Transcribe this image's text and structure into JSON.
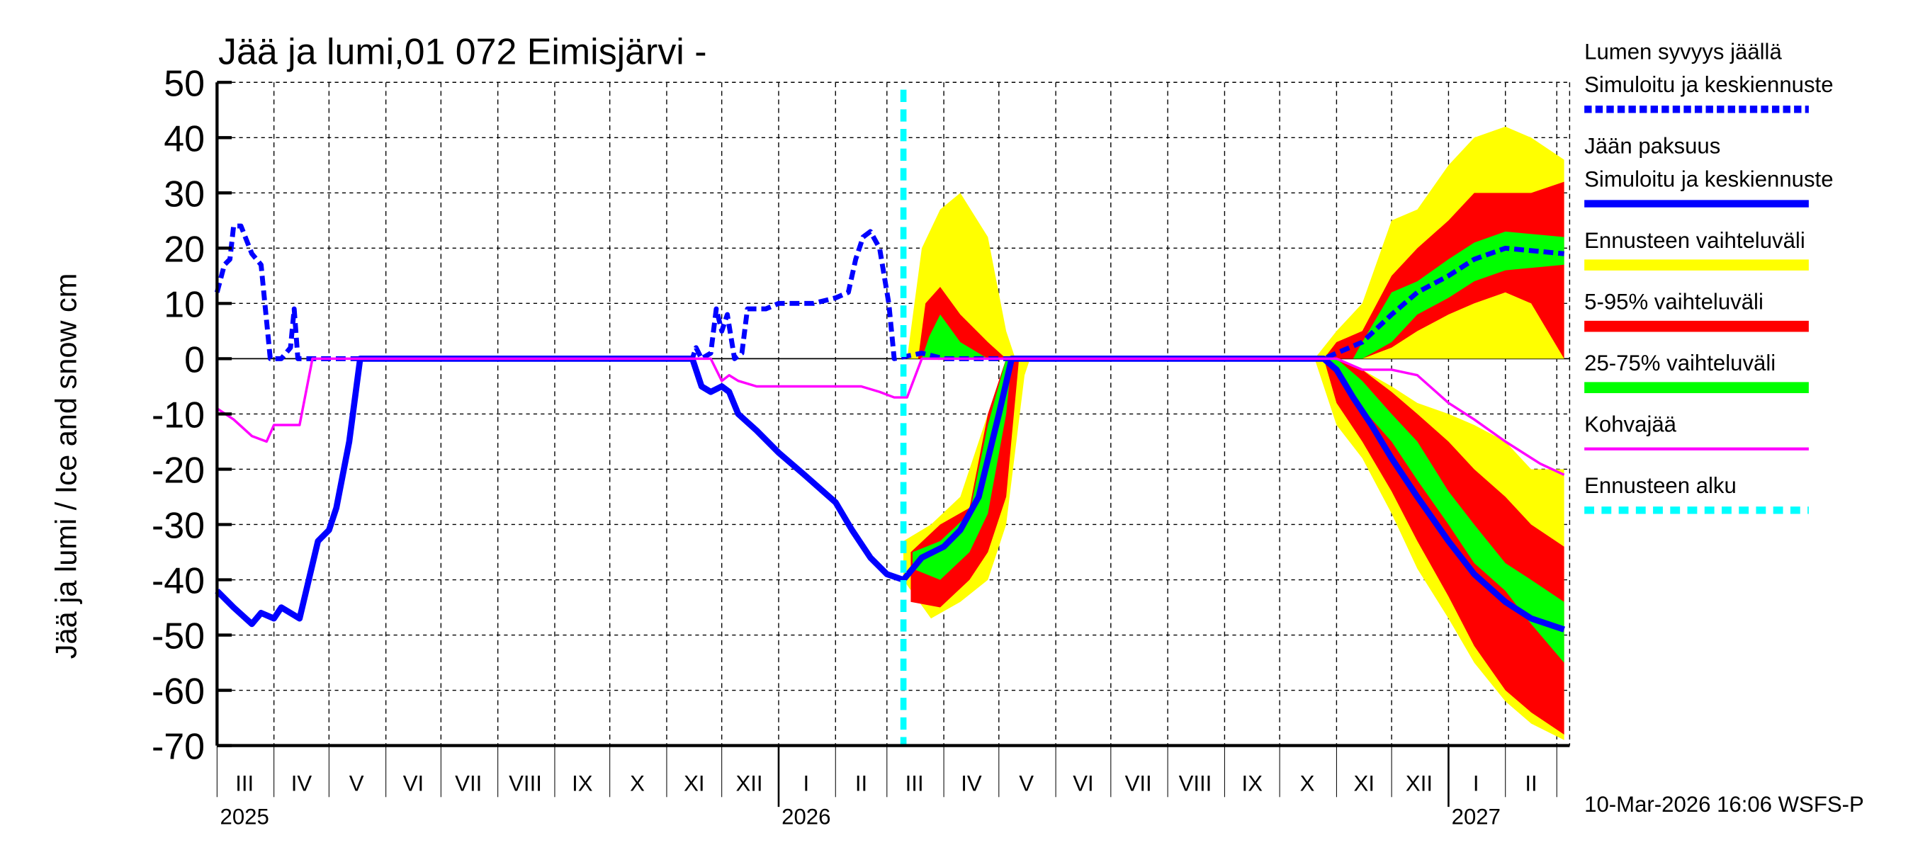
{
  "chart_data": {
    "type": "area",
    "title": "Jää ja lumi,01 072 Eimisjärvi -",
    "ylabel": "Jää ja lumi / Ice and snow    cm",
    "ylim": [
      -70,
      50
    ],
    "yticks": [
      50,
      40,
      30,
      20,
      10,
      0,
      -10,
      -20,
      -30,
      -40,
      -50,
      -60,
      -70
    ],
    "xlim": [
      "2025-03-01",
      "2027-03-08"
    ],
    "grid": true,
    "legend_position": "right",
    "month_labels": [
      {
        "label": "III",
        "date": "2025-03-16"
      },
      {
        "label": "IV",
        "date": "2025-04-16"
      },
      {
        "label": "V",
        "date": "2025-05-16"
      },
      {
        "label": "VI",
        "date": "2025-06-16"
      },
      {
        "label": "VII",
        "date": "2025-07-16"
      },
      {
        "label": "VIII",
        "date": "2025-08-16"
      },
      {
        "label": "IX",
        "date": "2025-09-16"
      },
      {
        "label": "X",
        "date": "2025-10-16"
      },
      {
        "label": "XI",
        "date": "2025-11-16"
      },
      {
        "label": "XII",
        "date": "2025-12-16"
      },
      {
        "label": "I",
        "date": "2026-01-16"
      },
      {
        "label": "II",
        "date": "2026-02-15"
      },
      {
        "label": "III",
        "date": "2026-03-16"
      },
      {
        "label": "IV",
        "date": "2026-04-16"
      },
      {
        "label": "V",
        "date": "2026-05-16"
      },
      {
        "label": "VI",
        "date": "2026-06-16"
      },
      {
        "label": "VII",
        "date": "2026-07-16"
      },
      {
        "label": "VIII",
        "date": "2026-08-16"
      },
      {
        "label": "IX",
        "date": "2026-09-16"
      },
      {
        "label": "X",
        "date": "2026-10-16"
      },
      {
        "label": "XI",
        "date": "2026-11-16"
      },
      {
        "label": "XII",
        "date": "2026-12-16"
      },
      {
        "label": "I",
        "date": "2027-01-16"
      },
      {
        "label": "II",
        "date": "2027-02-15"
      }
    ],
    "year_labels": [
      {
        "label": "2025",
        "date": "2025-03-16"
      },
      {
        "label": "2026",
        "date": "2026-01-16"
      },
      {
        "label": "2027",
        "date": "2027-01-16"
      }
    ],
    "forecast_start": "2026-03-10",
    "colors": {
      "snow": "#0000ff",
      "ice": "#0000ff",
      "range": "#ffff00",
      "p5_95": "#ff0000",
      "p25_75": "#00ff00",
      "kohva": "#ff00ff",
      "forecast_start": "#00ffff"
    },
    "legend": [
      {
        "label": "Lumen syvyys jäällä\nSimuloitu ja keskiennuste",
        "style": "dashed",
        "color": "#0000ff"
      },
      {
        "label": "Jään paksuus\nSimuloitu ja keskiennuste",
        "style": "solid",
        "color": "#0000ff"
      },
      {
        "label": "Ennusteen vaihteluväli",
        "style": "band",
        "color": "#ffff00"
      },
      {
        "label": "5-95% vaihteluväli",
        "style": "band",
        "color": "#ff0000"
      },
      {
        "label": "25-75% vaihteluväli",
        "style": "band",
        "color": "#00ff00"
      },
      {
        "label": "Kohvajää",
        "style": "thin",
        "color": "#ff00ff"
      },
      {
        "label": "Ennusteen alku",
        "style": "dotted",
        "color": "#00ffff"
      }
    ],
    "bands": {
      "range": [
        [
          [
            "2026-03-12",
            0,
            0
          ],
          [
            "2026-03-20",
            0,
            20
          ],
          [
            "2026-03-30",
            0,
            27
          ],
          [
            "2026-04-10",
            0,
            30
          ],
          [
            "2026-04-25",
            0,
            22
          ],
          [
            "2026-05-05",
            0,
            5
          ],
          [
            "2026-05-10",
            0,
            0
          ]
        ],
        [
          [
            "2026-03-10",
            -40,
            -33
          ],
          [
            "2026-03-25",
            -47,
            -30
          ],
          [
            "2026-04-10",
            -44,
            -25
          ],
          [
            "2026-04-25",
            -40,
            -10
          ],
          [
            "2026-05-05",
            -30,
            0
          ],
          [
            "2026-05-15",
            -3,
            0
          ],
          [
            "2026-05-18",
            0,
            0
          ]
        ],
        [
          [
            "2026-10-20",
            0,
            0
          ],
          [
            "2026-11-01",
            0,
            5
          ],
          [
            "2026-11-15",
            0,
            10
          ],
          [
            "2026-12-01",
            0,
            25
          ],
          [
            "2026-12-15",
            0,
            27
          ],
          [
            "2027-01-01",
            0,
            35
          ],
          [
            "2027-01-15",
            0,
            40
          ],
          [
            "2027-02-01",
            0,
            42
          ],
          [
            "2027-02-15",
            0,
            40
          ],
          [
            "2027-03-05",
            0,
            36
          ]
        ],
        [
          [
            "2026-10-20",
            0,
            0
          ],
          [
            "2026-11-01",
            -12,
            0
          ],
          [
            "2026-11-15",
            -18,
            -2
          ],
          [
            "2026-12-01",
            -28,
            -5
          ],
          [
            "2026-12-15",
            -38,
            -8
          ],
          [
            "2027-01-01",
            -47,
            -10
          ],
          [
            "2027-01-15",
            -55,
            -12
          ],
          [
            "2027-02-01",
            -62,
            -15
          ],
          [
            "2027-02-15",
            -66,
            -20
          ],
          [
            "2027-03-05",
            -69,
            -20
          ]
        ]
      ],
      "p5_95": [
        [
          [
            "2026-03-18",
            0,
            0
          ],
          [
            "2026-03-22",
            0,
            10
          ],
          [
            "2026-03-30",
            0,
            13
          ],
          [
            "2026-04-10",
            0,
            8
          ],
          [
            "2026-04-25",
            0,
            3
          ],
          [
            "2026-05-05",
            0,
            0
          ]
        ],
        [
          [
            "2026-03-14",
            -44,
            -35
          ],
          [
            "2026-03-30",
            -45,
            -30
          ],
          [
            "2026-04-15",
            -40,
            -27
          ],
          [
            "2026-04-25",
            -35,
            -10
          ],
          [
            "2026-05-05",
            -25,
            0
          ],
          [
            "2026-05-12",
            0,
            0
          ]
        ],
        [
          [
            "2026-10-25",
            0,
            0
          ],
          [
            "2026-11-01",
            0,
            3
          ],
          [
            "2026-11-15",
            0,
            5
          ],
          [
            "2026-12-01",
            2,
            15
          ],
          [
            "2026-12-15",
            5,
            20
          ],
          [
            "2027-01-01",
            8,
            25
          ],
          [
            "2027-01-15",
            10,
            30
          ],
          [
            "2027-02-01",
            12,
            30
          ],
          [
            "2027-02-15",
            10,
            30
          ],
          [
            "2027-03-05",
            0,
            32
          ]
        ],
        [
          [
            "2026-10-25",
            0,
            0
          ],
          [
            "2026-11-01",
            -8,
            0
          ],
          [
            "2026-11-15",
            -15,
            -2
          ],
          [
            "2026-12-01",
            -24,
            -6
          ],
          [
            "2026-12-15",
            -33,
            -10
          ],
          [
            "2027-01-01",
            -43,
            -15
          ],
          [
            "2027-01-15",
            -52,
            -20
          ],
          [
            "2027-02-01",
            -60,
            -25
          ],
          [
            "2027-02-15",
            -64,
            -30
          ],
          [
            "2027-03-05",
            -68,
            -34
          ]
        ]
      ],
      "p25_75": [
        [
          [
            "2026-03-20",
            0,
            0
          ],
          [
            "2026-03-24",
            0,
            4
          ],
          [
            "2026-03-30",
            0,
            8
          ],
          [
            "2026-04-10",
            0,
            3
          ],
          [
            "2026-04-25",
            0,
            0
          ]
        ],
        [
          [
            "2026-03-15",
            -38,
            -35
          ],
          [
            "2026-03-30",
            -40,
            -33
          ],
          [
            "2026-04-15",
            -35,
            -28
          ],
          [
            "2026-04-25",
            -28,
            -12
          ],
          [
            "2026-05-05",
            -10,
            0
          ],
          [
            "2026-05-08",
            0,
            0
          ]
        ],
        [
          [
            "2026-11-10",
            0,
            0
          ],
          [
            "2026-11-15",
            0,
            3
          ],
          [
            "2026-12-01",
            3,
            12
          ],
          [
            "2026-12-15",
            8,
            14
          ],
          [
            "2027-01-01",
            11,
            18
          ],
          [
            "2027-01-15",
            14,
            21
          ],
          [
            "2027-02-01",
            16,
            23
          ],
          [
            "2027-03-05",
            17,
            22
          ]
        ],
        [
          [
            "2026-10-28",
            0,
            0
          ],
          [
            "2026-11-01",
            -3,
            0
          ],
          [
            "2026-11-15",
            -9,
            -4
          ],
          [
            "2026-12-01",
            -15,
            -10
          ],
          [
            "2026-12-15",
            -22,
            -15
          ],
          [
            "2027-01-01",
            -30,
            -24
          ],
          [
            "2027-01-15",
            -37,
            -30
          ],
          [
            "2027-02-01",
            -42,
            -37
          ],
          [
            "2027-02-15",
            -48,
            -40
          ],
          [
            "2027-03-05",
            -55,
            -44
          ]
        ]
      ]
    },
    "series": [
      {
        "name": "Lumen syvyys jäällä",
        "points": [
          [
            "2025-03-01",
            12
          ],
          [
            "2025-03-05",
            17
          ],
          [
            "2025-03-08",
            18
          ],
          [
            "2025-03-10",
            24
          ],
          [
            "2025-03-14",
            24
          ],
          [
            "2025-03-20",
            19
          ],
          [
            "2025-03-25",
            17
          ],
          [
            "2025-03-30",
            0
          ],
          [
            "2025-04-05",
            0
          ],
          [
            "2025-04-10",
            2
          ],
          [
            "2025-04-12",
            9
          ],
          [
            "2025-04-14",
            0
          ],
          [
            "2025-11-15",
            0
          ],
          [
            "2025-11-17",
            2
          ],
          [
            "2025-11-20",
            0
          ],
          [
            "2025-11-25",
            1
          ],
          [
            "2025-11-28",
            9
          ],
          [
            "2025-12-01",
            5
          ],
          [
            "2025-12-04",
            8
          ],
          [
            "2025-12-08",
            0
          ],
          [
            "2025-12-12",
            1
          ],
          [
            "2025-12-15",
            9
          ],
          [
            "2025-12-25",
            9
          ],
          [
            "2026-01-01",
            10
          ],
          [
            "2026-01-20",
            10
          ],
          [
            "2026-02-01",
            11
          ],
          [
            "2026-02-08",
            12
          ],
          [
            "2026-02-12",
            18
          ],
          [
            "2026-02-16",
            22
          ],
          [
            "2026-02-20",
            23
          ],
          [
            "2026-02-25",
            20
          ],
          [
            "2026-03-02",
            10
          ],
          [
            "2026-03-05",
            0
          ],
          [
            "2026-03-20",
            1
          ],
          [
            "2026-04-01",
            0
          ],
          [
            "2026-10-25",
            0
          ],
          [
            "2026-11-15",
            3
          ],
          [
            "2026-12-01",
            8
          ],
          [
            "2026-12-15",
            12
          ],
          [
            "2027-01-01",
            15
          ],
          [
            "2027-01-15",
            18
          ],
          [
            "2027-02-01",
            20
          ],
          [
            "2027-03-05",
            19
          ]
        ]
      },
      {
        "name": "Jään paksuus",
        "points": [
          [
            "2025-03-01",
            -42
          ],
          [
            "2025-03-10",
            -45
          ],
          [
            "2025-03-20",
            -48
          ],
          [
            "2025-03-25",
            -46
          ],
          [
            "2025-04-01",
            -47
          ],
          [
            "2025-04-05",
            -45
          ],
          [
            "2025-04-15",
            -47
          ],
          [
            "2025-04-20",
            -40
          ],
          [
            "2025-04-25",
            -33
          ],
          [
            "2025-05-01",
            -31
          ],
          [
            "2025-05-05",
            -27
          ],
          [
            "2025-05-12",
            -15
          ],
          [
            "2025-05-18",
            0
          ],
          [
            "2025-11-15",
            0
          ],
          [
            "2025-11-20",
            -5
          ],
          [
            "2025-11-25",
            -6
          ],
          [
            "2025-12-01",
            -5
          ],
          [
            "2025-12-05",
            -6
          ],
          [
            "2025-12-10",
            -10
          ],
          [
            "2025-12-20",
            -13
          ],
          [
            "2026-01-01",
            -17
          ],
          [
            "2026-01-15",
            -21
          ],
          [
            "2026-02-01",
            -26
          ],
          [
            "2026-02-10",
            -31
          ],
          [
            "2026-02-20",
            -36
          ],
          [
            "2026-03-01",
            -39
          ],
          [
            "2026-03-10",
            -40
          ],
          [
            "2026-03-20",
            -36
          ],
          [
            "2026-04-01",
            -34
          ],
          [
            "2026-04-10",
            -31
          ],
          [
            "2026-04-20",
            -25
          ],
          [
            "2026-05-01",
            -10
          ],
          [
            "2026-05-08",
            0
          ],
          [
            "2026-10-25",
            0
          ],
          [
            "2026-11-01",
            -2
          ],
          [
            "2026-11-10",
            -7
          ],
          [
            "2026-11-20",
            -12
          ],
          [
            "2026-12-01",
            -18
          ],
          [
            "2026-12-15",
            -25
          ],
          [
            "2027-01-01",
            -33
          ],
          [
            "2027-01-15",
            -39
          ],
          [
            "2027-02-01",
            -44
          ],
          [
            "2027-02-15",
            -47
          ],
          [
            "2027-03-05",
            -49
          ]
        ]
      },
      {
        "name": "Kohvajää",
        "points": [
          [
            "2025-03-01",
            -9
          ],
          [
            "2025-03-10",
            -11
          ],
          [
            "2025-03-20",
            -14
          ],
          [
            "2025-03-28",
            -15
          ],
          [
            "2025-04-01",
            -12
          ],
          [
            "2025-04-15",
            -12
          ],
          [
            "2025-04-22",
            0
          ],
          [
            "2025-11-25",
            0
          ],
          [
            "2025-12-01",
            -4
          ],
          [
            "2025-12-05",
            -3
          ],
          [
            "2025-12-10",
            -4
          ],
          [
            "2025-12-20",
            -5
          ],
          [
            "2026-02-15",
            -5
          ],
          [
            "2026-02-25",
            -6
          ],
          [
            "2026-03-05",
            -7
          ],
          [
            "2026-03-12",
            -7
          ],
          [
            "2026-03-20",
            0
          ],
          [
            "2026-11-01",
            0
          ],
          [
            "2026-11-15",
            -2
          ],
          [
            "2026-12-01",
            -2
          ],
          [
            "2026-12-15",
            -3
          ],
          [
            "2027-01-01",
            -8
          ],
          [
            "2027-01-15",
            -11
          ],
          [
            "2027-02-01",
            -15
          ],
          [
            "2027-02-20",
            -19
          ],
          [
            "2027-03-05",
            -21
          ]
        ]
      }
    ]
  },
  "footer": {
    "timestamp": "10-Mar-2026 16:06 WSFS-P"
  }
}
